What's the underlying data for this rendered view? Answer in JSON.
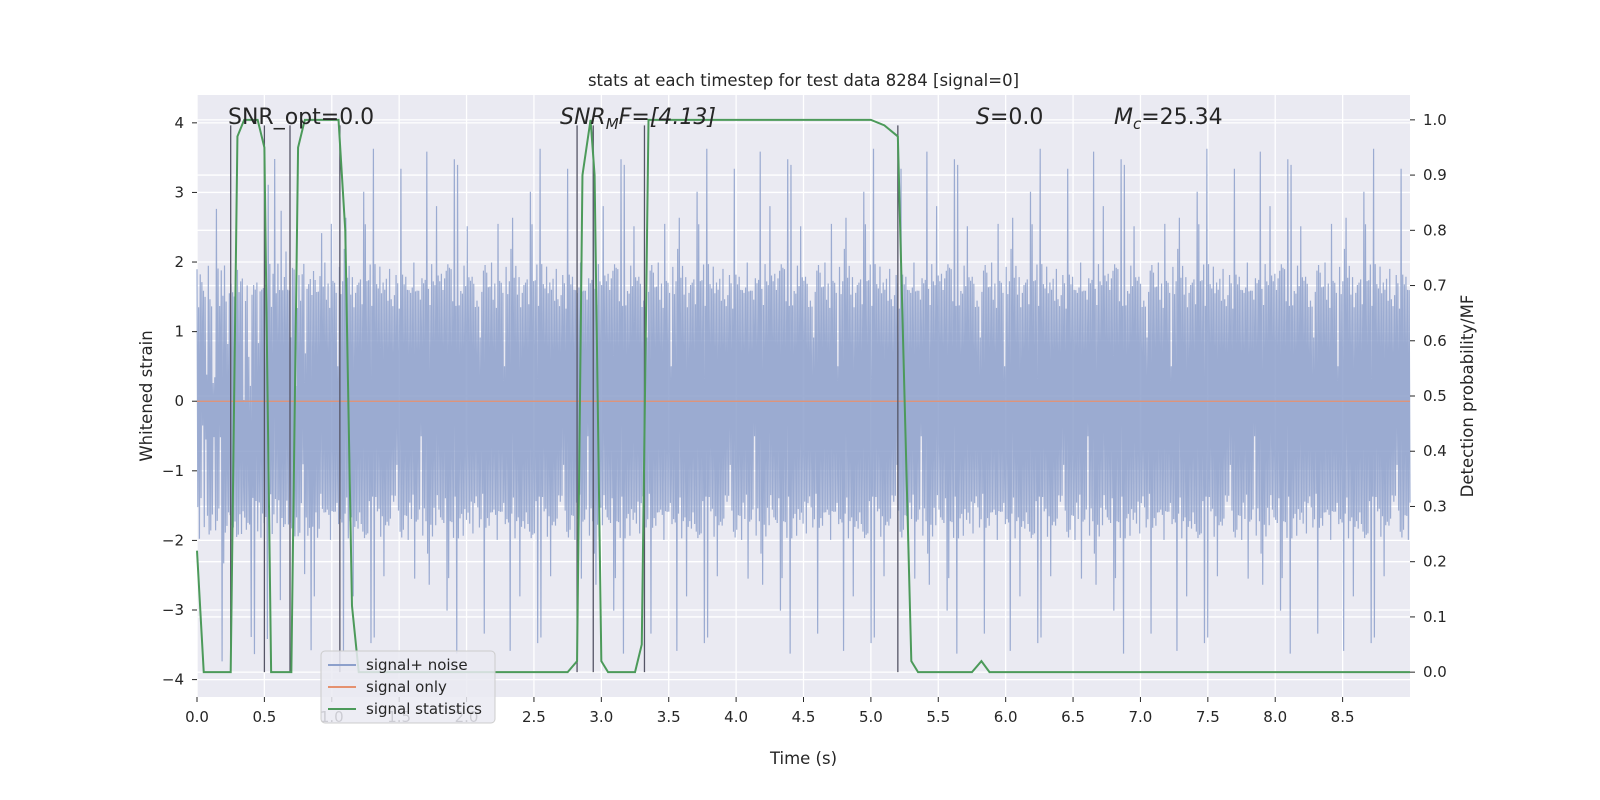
{
  "chart_data": {
    "type": "line",
    "title": "stats at each timestep for test data 8284 [signal=0]",
    "xlabel": "Time (s)",
    "ylabel": "Whitened strain",
    "ylabel_right": "Detection probability/MF",
    "xlim": [
      0.0,
      9.0
    ],
    "ylim": [
      -4.25,
      4.4
    ],
    "ylim_right": [
      -0.045,
      1.045
    ],
    "x_ticks": [
      0.0,
      0.5,
      1.0,
      1.5,
      2.0,
      2.5,
      3.0,
      3.5,
      4.0,
      4.5,
      5.0,
      5.5,
      6.0,
      6.5,
      7.0,
      7.5,
      8.0,
      8.5
    ],
    "x_tick_labels": [
      "0.0",
      "0.5",
      "1.0",
      "1.5",
      "2.0",
      "2.5",
      "3.0",
      "3.5",
      "4.0",
      "4.5",
      "5.0",
      "5.5",
      "6.0",
      "6.5",
      "7.0",
      "7.5",
      "8.0",
      "8.5"
    ],
    "y_ticks": [
      -4,
      -3,
      -2,
      -1,
      0,
      1,
      2,
      3,
      4
    ],
    "y_tick_labels": [
      "−4",
      "−3",
      "−2",
      "−1",
      "0",
      "1",
      "2",
      "3",
      "4"
    ],
    "y_right_ticks": [
      0.0,
      0.1,
      0.2,
      0.3,
      0.4,
      0.5,
      0.6,
      0.7,
      0.8,
      0.9,
      1.0
    ],
    "y_right_tick_labels": [
      "0.0",
      "0.1",
      "0.2",
      "0.3",
      "0.4",
      "0.5",
      "0.6",
      "0.7",
      "0.8",
      "0.9",
      "1.0"
    ],
    "annotations": {
      "snr_opt": "SNR_opt=0.0",
      "snr_mf_base": "SNR",
      "snr_mf_sub": "M",
      "snr_mf_rest": "F=[4.13]",
      "s_sym": "S",
      "s_rest": "=0.0",
      "mc_base": "M",
      "mc_sub": "c",
      "mc_rest": "=25.34"
    },
    "series": [
      {
        "name": "signal+ noise",
        "color": "#8da0cb",
        "axis": "left",
        "description": "whitened strain noise, approx 1500 samples, amplitude mostly within ±2 with peaks up to ±3.7",
        "n_samples": 1500,
        "typical_abs": 1.9,
        "peak_abs": 3.75
      },
      {
        "name": "signal only",
        "color": "#e5916f",
        "axis": "left",
        "x": [
          0.0,
          9.0
        ],
        "y": [
          0.0,
          0.0
        ]
      },
      {
        "name": "signal statistics",
        "color": "#4c9a5a",
        "axis": "right",
        "x": [
          0.0,
          0.05,
          0.25,
          0.3,
          0.35,
          0.4,
          0.45,
          0.5,
          0.55,
          0.65,
          0.7,
          0.75,
          0.8,
          0.85,
          0.95,
          1.05,
          1.1,
          1.15,
          1.2,
          1.3,
          2.0,
          2.5,
          2.6,
          2.75,
          2.82,
          2.86,
          2.92,
          2.95,
          3.0,
          3.05,
          3.25,
          3.3,
          3.35,
          3.37,
          3.5,
          4.0,
          4.5,
          5.0,
          5.1,
          5.2,
          5.3,
          5.35,
          5.45,
          5.6,
          5.75,
          5.82,
          5.88,
          6.0,
          6.5,
          7.0,
          8.0,
          9.0
        ],
        "y": [
          0.22,
          0.0,
          0.0,
          0.97,
          1.0,
          1.0,
          1.0,
          0.95,
          0.0,
          0.0,
          0.0,
          0.95,
          1.0,
          1.0,
          1.0,
          1.0,
          0.8,
          0.12,
          0.0,
          0.0,
          0.0,
          0.0,
          0.0,
          0.0,
          0.02,
          0.9,
          1.0,
          0.9,
          0.02,
          0.0,
          0.0,
          0.05,
          1.0,
          1.0,
          1.0,
          1.0,
          1.0,
          1.0,
          0.99,
          0.97,
          0.02,
          0.0,
          0.0,
          0.0,
          0.0,
          0.02,
          0.0,
          0.0,
          0.0,
          0.0,
          0.0,
          0.0
        ]
      }
    ],
    "vertical_markers_x": [
      0.25,
      0.5,
      0.69,
      1.06,
      2.82,
      2.94,
      3.32,
      5.2
    ],
    "vertical_markers_right_top": [
      0.99,
      0.99,
      0.99,
      0.99,
      0.99,
      0.99,
      0.99,
      0.99
    ],
    "legend": {
      "placement": "lower-left",
      "entries": [
        "signal+ noise",
        "signal only",
        "signal statistics"
      ]
    },
    "grid": true
  }
}
